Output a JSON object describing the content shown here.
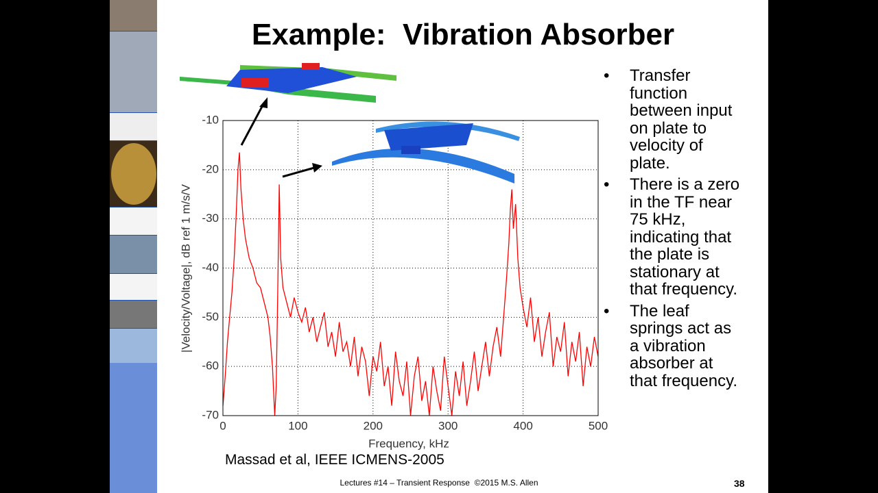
{
  "slide": {
    "title": "Example:  Vibration Absorber",
    "bullets": [
      "Transfer function between input on plate to velocity of plate.",
      "There is a zero in the TF near 75 kHz, indicating that the plate is stationary at that frequency.",
      "The leaf springs act as a vibration absorber at that frequency."
    ],
    "citation": "Massad et al, IEEE ICMENS-2005",
    "footer": "Lectures #14 – Transient Response  ©2015 M.S. Allen",
    "page_number": "38"
  },
  "chart_data": {
    "type": "line",
    "x_label": "Frequency, kHz",
    "y_label": "|Velocity/Voltage|, dB ref 1 m/s/V",
    "xlim": [
      0,
      500
    ],
    "ylim": [
      -70,
      -10
    ],
    "xticks": [
      0,
      100,
      200,
      300,
      400,
      500
    ],
    "yticks": [
      -10,
      -20,
      -30,
      -40,
      -50,
      -60,
      -70
    ],
    "grid": true,
    "x": [
      0,
      3,
      6,
      9,
      12,
      15,
      18,
      20,
      22,
      24,
      27,
      30,
      35,
      40,
      45,
      50,
      55,
      60,
      63,
      66,
      69,
      71,
      73,
      75,
      77,
      80,
      85,
      90,
      95,
      100,
      105,
      110,
      115,
      120,
      125,
      130,
      135,
      140,
      145,
      150,
      155,
      160,
      165,
      170,
      175,
      180,
      185,
      190,
      195,
      200,
      205,
      210,
      215,
      220,
      225,
      230,
      235,
      240,
      245,
      250,
      255,
      260,
      265,
      270,
      275,
      280,
      285,
      290,
      295,
      300,
      305,
      310,
      315,
      320,
      325,
      330,
      335,
      340,
      345,
      350,
      355,
      360,
      365,
      370,
      375,
      378,
      381,
      383,
      385,
      387,
      390,
      393,
      396,
      400,
      405,
      410,
      415,
      420,
      425,
      430,
      435,
      440,
      445,
      450,
      455,
      460,
      465,
      470,
      475,
      480,
      485,
      490,
      495,
      500
    ],
    "series": [
      {
        "color": "#ff0000",
        "values": [
          -68,
          -62,
          -55,
          -50,
          -45,
          -38,
          -28,
          -20,
          -16.5,
          -24,
          -30,
          -34,
          -38,
          -40,
          -43,
          -44,
          -47,
          -50,
          -54,
          -60,
          -70,
          -64,
          -45,
          -23,
          -38,
          -44,
          -47,
          -50,
          -46,
          -49,
          -51,
          -48,
          -53,
          -50,
          -55,
          -52,
          -49,
          -56,
          -53,
          -58,
          -51,
          -57,
          -55,
          -60,
          -54,
          -62,
          -56,
          -59,
          -66,
          -58,
          -61,
          -55,
          -64,
          -60,
          -68,
          -57,
          -63,
          -66,
          -59,
          -70,
          -62,
          -58,
          -67,
          -63,
          -70,
          -60,
          -65,
          -69,
          -58,
          -64,
          -70,
          -61,
          -66,
          -59,
          -68,
          -63,
          -57,
          -65,
          -60,
          -55,
          -62,
          -56,
          -52,
          -58,
          -48,
          -42,
          -35,
          -28,
          -24,
          -32,
          -27,
          -38,
          -44,
          -48,
          -52,
          -46,
          -55,
          -50,
          -58,
          -53,
          -49,
          -60,
          -54,
          -57,
          -51,
          -62,
          -55,
          -59,
          -53,
          -64,
          -56,
          -60,
          -54,
          -58
        ]
      }
    ]
  }
}
